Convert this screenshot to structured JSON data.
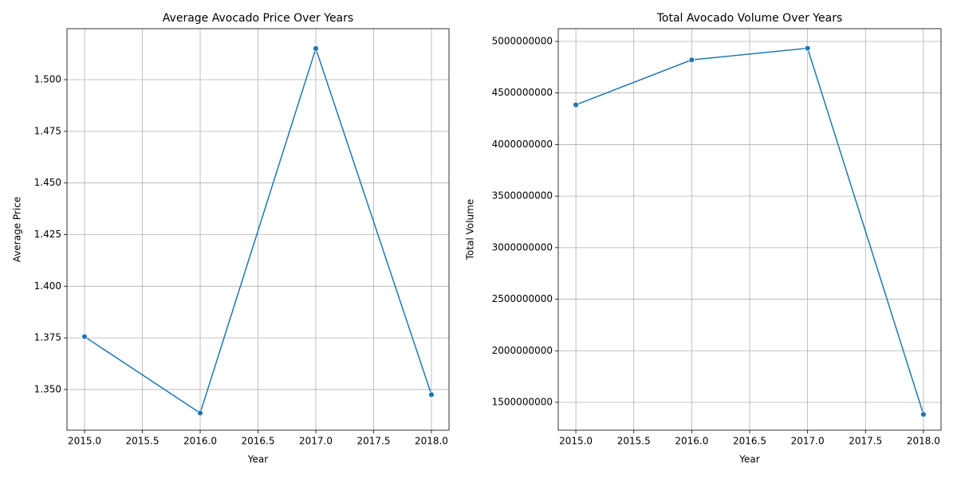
{
  "chart_data": [
    {
      "type": "line",
      "title": "Average Avocado Price Over Years",
      "xlabel": "Year",
      "ylabel": "Average Price",
      "x": [
        2015,
        2016,
        2017,
        2018
      ],
      "values": [
        1.3756,
        1.3386,
        1.5151,
        1.3475
      ],
      "color": "#1f77b4",
      "xlim": [
        2014.848,
        2018.152
      ],
      "xticks": [
        {
          "value": 2015,
          "label": "2015.0"
        },
        {
          "value": 2015.5,
          "label": "2015.5"
        },
        {
          "value": 2016,
          "label": "2016.0"
        },
        {
          "value": 2016.5,
          "label": "2016.5"
        },
        {
          "value": 2017,
          "label": "2017.0"
        },
        {
          "value": 2017.5,
          "label": "2017.5"
        },
        {
          "value": 2018,
          "label": "2018.0"
        }
      ],
      "ylim": [
        1.3303,
        1.5247
      ],
      "yticks": [
        {
          "value": 1.35,
          "label": "1.350"
        },
        {
          "value": 1.375,
          "label": "1.375"
        },
        {
          "value": 1.4,
          "label": "1.400"
        },
        {
          "value": 1.425,
          "label": "1.425"
        },
        {
          "value": 1.45,
          "label": "1.450"
        },
        {
          "value": 1.475,
          "label": "1.475"
        },
        {
          "value": 1.5,
          "label": "1.500"
        }
      ],
      "grid": true
    },
    {
      "type": "line",
      "title": "Total Avocado Volume Over Years",
      "xlabel": "Year",
      "ylabel": "Total Volume",
      "x": [
        2015,
        2016,
        2017,
        2018
      ],
      "values": [
        4385000000,
        4821000000,
        4934000000,
        1383000000
      ],
      "color": "#1f77b4",
      "xlim": [
        2014.848,
        2018.152
      ],
      "xticks": [
        {
          "value": 2015,
          "label": "2015.0"
        },
        {
          "value": 2015.5,
          "label": "2015.5"
        },
        {
          "value": 2016,
          "label": "2016.0"
        },
        {
          "value": 2016.5,
          "label": "2016.5"
        },
        {
          "value": 2017,
          "label": "2017.0"
        },
        {
          "value": 2017.5,
          "label": "2017.5"
        },
        {
          "value": 2018,
          "label": "2018.0"
        }
      ],
      "ylim": [
        1229600000,
        5123600000
      ],
      "yticks": [
        1500000000,
        2000000000,
        2500000000,
        3000000000,
        3500000000,
        4000000000,
        4500000000,
        5000000000
      ],
      "grid": true
    }
  ]
}
